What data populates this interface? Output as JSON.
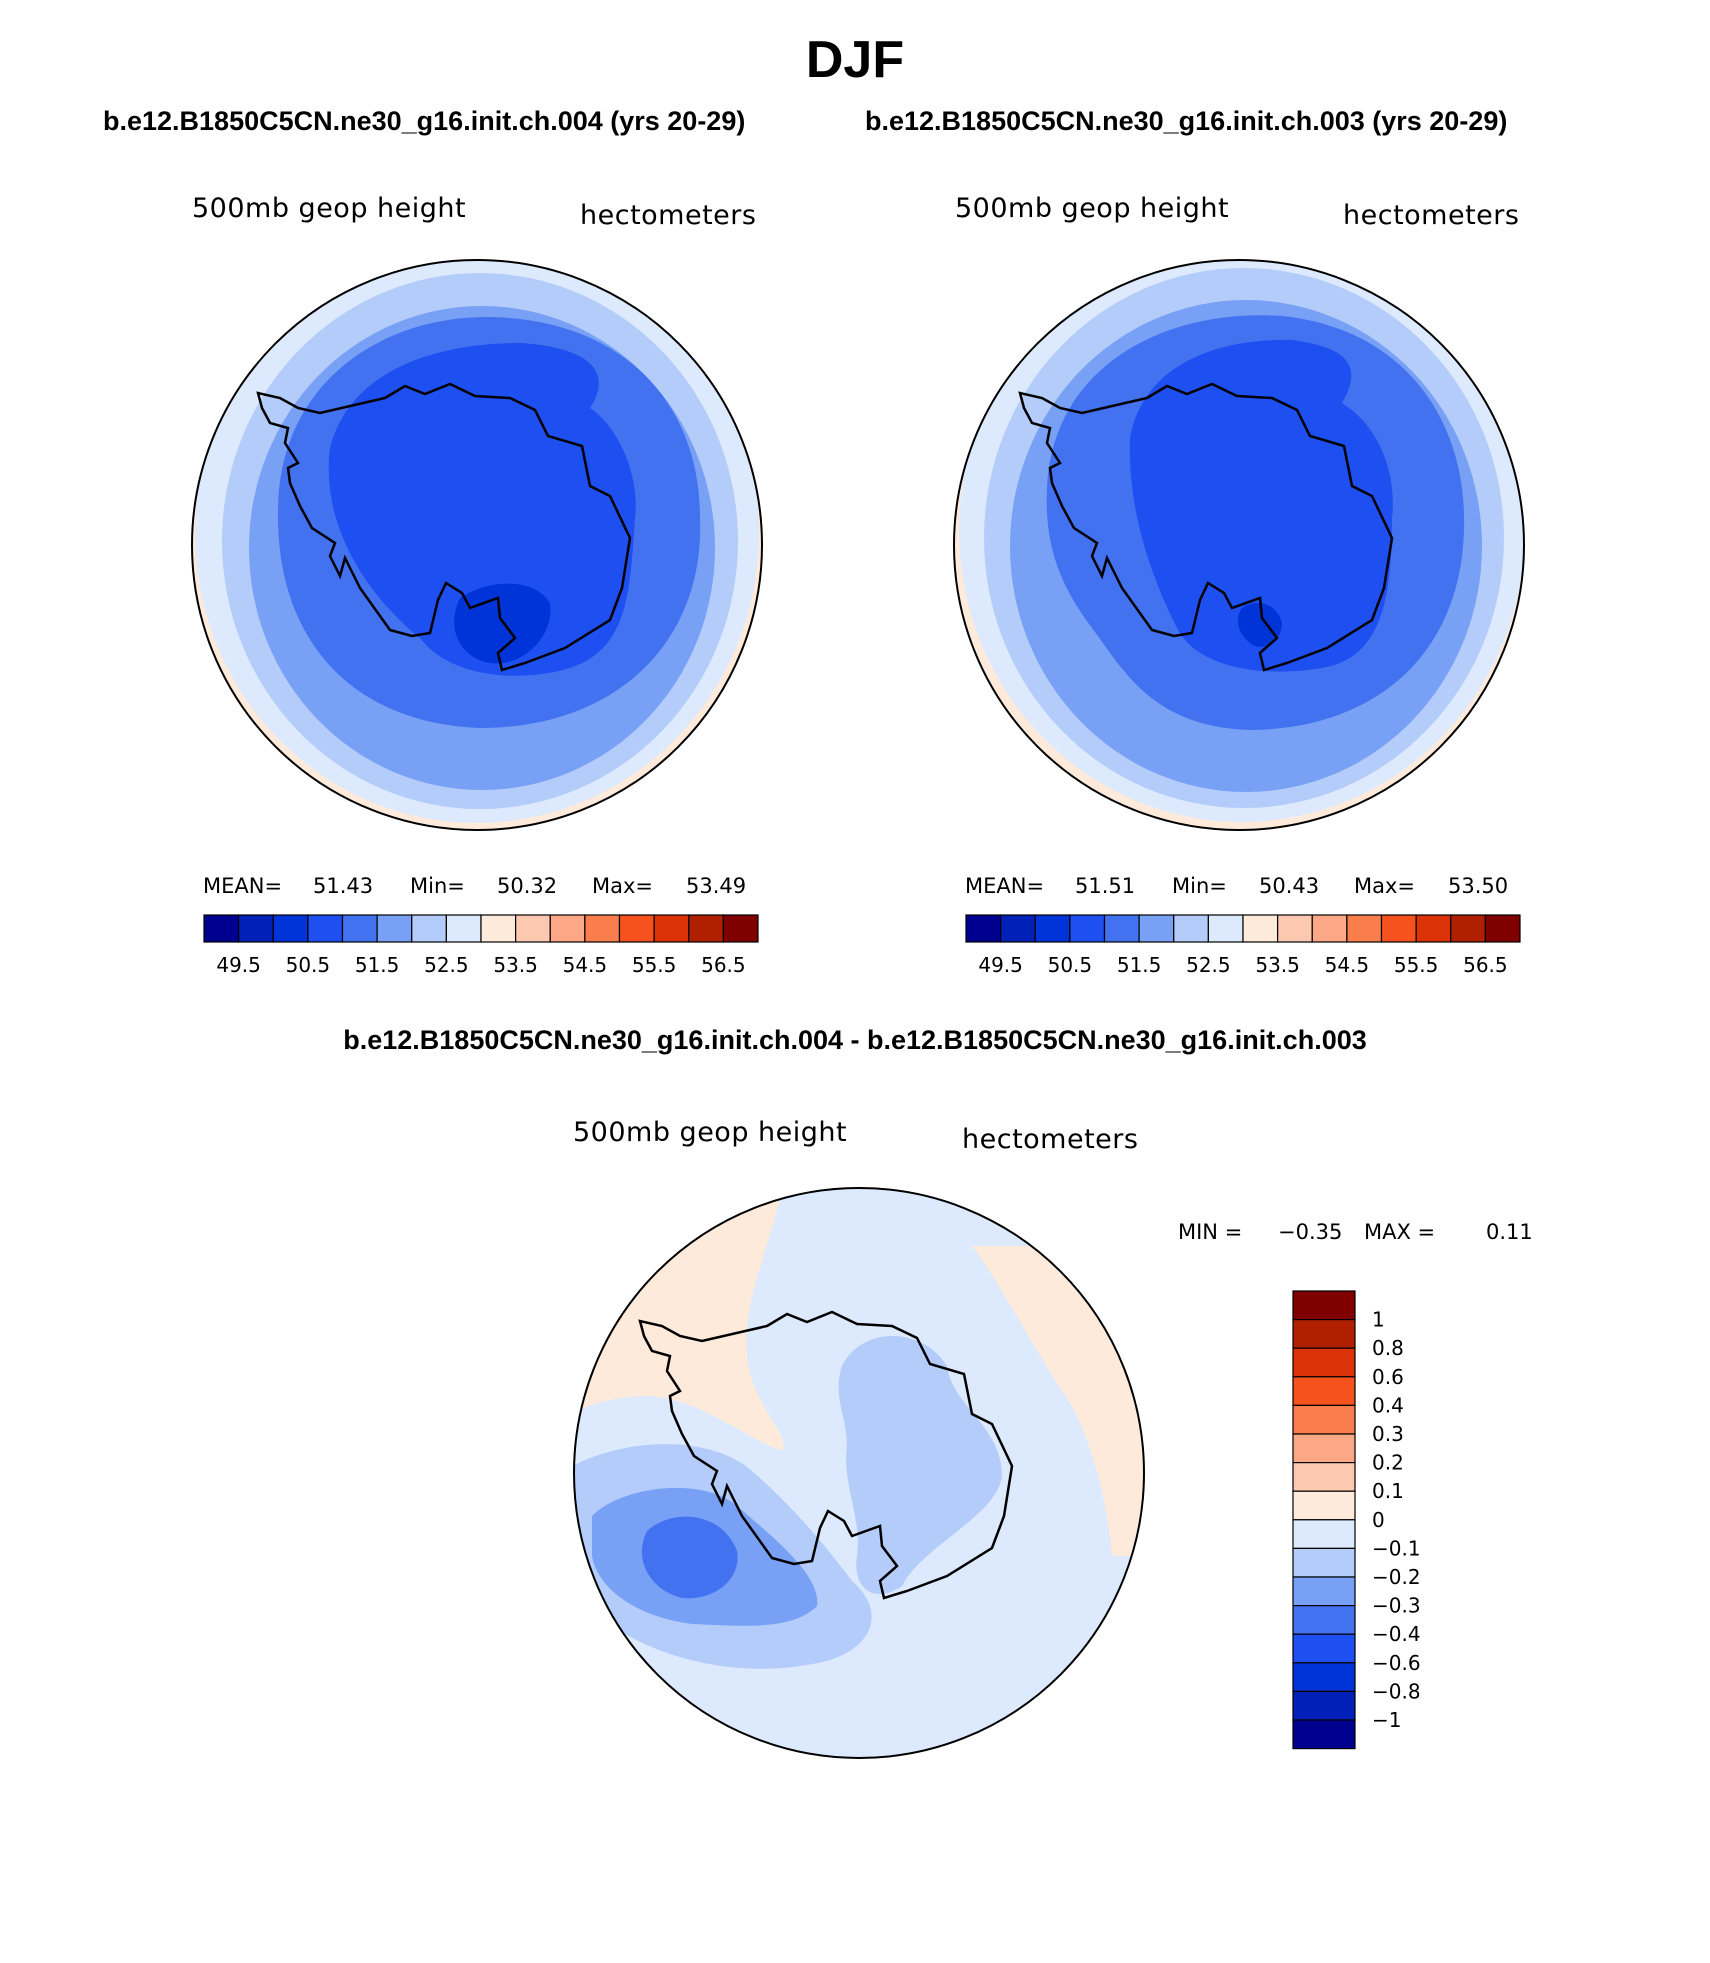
{
  "figure": {
    "title": "DJF",
    "top_left_title": "b.e12.B1850C5CN.ne30_g16.init.ch.004 (yrs 20-29)",
    "top_right_title": "b.e12.B1850C5CN.ne30_g16.init.ch.003 (yrs 20-29)",
    "diff_title": "b.e12.B1850C5CN.ne30_g16.init.ch.004 - b.e12.B1850C5CN.ne30_g16.init.ch.003"
  },
  "chart_data": [
    {
      "type": "heatmap",
      "projection": "south-polar-stereographic",
      "variable": "500mb geop height",
      "units": "hectometers",
      "stats": {
        "mean_label": "MEAN=",
        "mean": "51.43",
        "min_label": "Min=",
        "min": "50.32",
        "max_label": "Max=",
        "max": "53.49"
      },
      "colorbar": {
        "orientation": "horizontal",
        "colors": [
          "#00008f",
          "#0020b8",
          "#0034d8",
          "#1e4ff0",
          "#4372f0",
          "#78a0f5",
          "#b3ccfa",
          "#dde9fc",
          "#feeadb",
          "#fdc8b0",
          "#fca886",
          "#fa7e4c",
          "#f5521e",
          "#db3208",
          "#b02000",
          "#800000"
        ],
        "tick_labels": [
          "49.5",
          "50.5",
          "51.5",
          "52.5",
          "53.5",
          "54.5",
          "55.5",
          "56.5"
        ]
      }
    },
    {
      "type": "heatmap",
      "projection": "south-polar-stereographic",
      "variable": "500mb geop height",
      "units": "hectometers",
      "stats": {
        "mean_label": "MEAN=",
        "mean": "51.51",
        "min_label": "Min=",
        "min": "50.43",
        "max_label": "Max=",
        "max": "53.50"
      },
      "colorbar": {
        "orientation": "horizontal",
        "colors": [
          "#00008f",
          "#0020b8",
          "#0034d8",
          "#1e4ff0",
          "#4372f0",
          "#78a0f5",
          "#b3ccfa",
          "#dde9fc",
          "#feeadb",
          "#fdc8b0",
          "#fca886",
          "#fa7e4c",
          "#f5521e",
          "#db3208",
          "#b02000",
          "#800000"
        ],
        "tick_labels": [
          "49.5",
          "50.5",
          "51.5",
          "52.5",
          "53.5",
          "54.5",
          "55.5",
          "56.5"
        ]
      }
    },
    {
      "type": "heatmap",
      "projection": "south-polar-stereographic",
      "variable": "500mb geop height",
      "units": "hectometers",
      "stats": {
        "min_label": "MIN =",
        "min": "−0.35",
        "max_label": "MAX =",
        "max": "0.11"
      },
      "colorbar": {
        "orientation": "vertical",
        "colors": [
          "#800000",
          "#b02000",
          "#db3208",
          "#f5521e",
          "#fa7e4c",
          "#fca886",
          "#fdc8b0",
          "#feeadb",
          "#dde9fc",
          "#b3ccfa",
          "#78a0f5",
          "#4372f0",
          "#1e4ff0",
          "#0034d8",
          "#0020b8",
          "#00008f"
        ],
        "tick_labels": [
          "1",
          "0.8",
          "0.6",
          "0.4",
          "0.3",
          "0.2",
          "0.1",
          "0",
          "−0.1",
          "−0.2",
          "−0.3",
          "−0.4",
          "−0.6",
          "−0.8",
          "−1"
        ]
      }
    }
  ]
}
